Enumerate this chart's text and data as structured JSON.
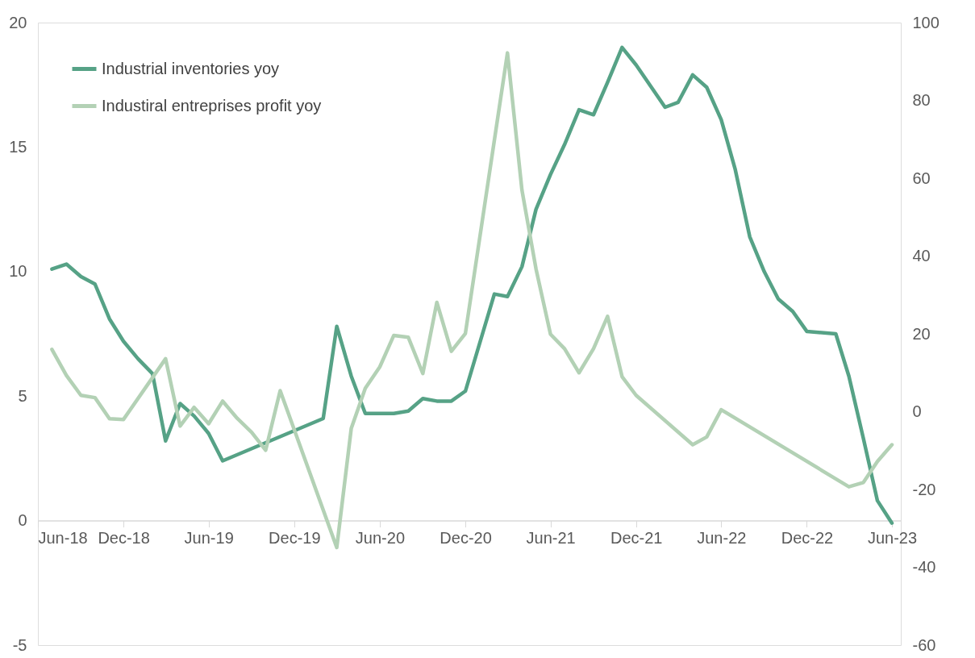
{
  "chart_data": {
    "type": "line",
    "xlim": [
      "2018-06",
      "2023-06-20"
    ],
    "xticks": [
      {
        "value": "2018-06",
        "label": "Jun-18"
      },
      {
        "value": "2018-12",
        "label": "Dec-18"
      },
      {
        "value": "2019-06",
        "label": "Jun-19"
      },
      {
        "value": "2019-12",
        "label": "Dec-19"
      },
      {
        "value": "2020-06",
        "label": "Jun-20"
      },
      {
        "value": "2020-12",
        "label": "Dec-20"
      },
      {
        "value": "2021-06",
        "label": "Jun-21"
      },
      {
        "value": "2021-12",
        "label": "Dec-21"
      },
      {
        "value": "2022-06",
        "label": "Jun-22"
      },
      {
        "value": "2022-12",
        "label": "Dec-22"
      },
      {
        "value": "2023-06",
        "label": "Jun-23"
      }
    ],
    "ylim": [
      -5,
      20
    ],
    "yticks": [
      -5,
      0,
      5,
      10,
      15,
      20
    ],
    "y2lim": [
      -60,
      100
    ],
    "y2ticks": [
      -60,
      -40,
      -20,
      0,
      20,
      40,
      60,
      80,
      100
    ],
    "grid": false,
    "legend": "top left",
    "series": [
      {
        "name": "Industrial inventories yoy",
        "color": "#56a286",
        "axis": "y",
        "x": [
          "2018-07",
          "2018-08",
          "2018-09",
          "2018-10",
          "2018-11",
          "2018-12",
          "2019-01",
          "2019-02",
          "2019-03",
          "2019-04",
          "2019-05",
          "2019-06",
          "2019-07",
          "2020-02",
          "2020-03",
          "2020-04",
          "2020-05",
          "2020-06",
          "2020-07",
          "2020-08",
          "2020-09",
          "2020-10",
          "2020-11",
          "2020-12",
          "2021-02",
          "2021-03",
          "2021-04",
          "2021-05",
          "2021-06",
          "2021-07",
          "2021-08",
          "2021-09",
          "2021-10",
          "2021-11",
          "2021-12",
          "2022-02",
          "2022-03",
          "2022-04",
          "2022-05",
          "2022-06",
          "2022-07",
          "2022-08",
          "2022-09",
          "2022-10",
          "2022-11",
          "2022-12",
          "2023-02",
          "2023-03",
          "2023-04",
          "2023-05",
          "2023-06"
        ],
        "values": [
          10.1,
          10.3,
          9.8,
          9.5,
          8.1,
          7.2,
          6.5,
          5.9,
          3.2,
          4.7,
          4.2,
          3.5,
          2.4,
          4.1,
          7.8,
          5.8,
          4.3,
          4.3,
          4.3,
          4.4,
          4.9,
          4.8,
          4.8,
          5.2,
          9.1,
          9.0,
          10.2,
          12.5,
          13.9,
          15.1,
          16.5,
          16.3,
          17.6,
          19.0,
          18.3,
          16.6,
          16.8,
          17.9,
          17.4,
          16.1,
          14.1,
          11.4,
          10.0,
          8.9,
          8.4,
          7.6,
          7.5,
          5.8,
          3.3,
          0.8,
          -0.1
        ]
      },
      {
        "name": "Industiral entreprises profit yoy",
        "color": "#b3d1b5",
        "axis": "y2",
        "x": [
          "2018-07",
          "2018-08",
          "2018-09",
          "2018-10",
          "2018-11",
          "2018-12",
          "2019-03",
          "2019-04",
          "2019-05",
          "2019-06",
          "2019-07",
          "2019-08",
          "2019-09",
          "2019-10",
          "2019-11",
          "2020-03",
          "2020-04",
          "2020-05",
          "2020-06",
          "2020-07",
          "2020-08",
          "2020-09",
          "2020-10",
          "2020-11",
          "2020-12",
          "2021-03",
          "2021-04",
          "2021-05",
          "2021-06",
          "2021-07",
          "2021-08",
          "2021-09",
          "2021-10",
          "2021-11",
          "2021-12",
          "2022-04",
          "2022-05",
          "2022-06",
          "2023-03",
          "2023-04",
          "2023-05",
          "2023-06"
        ],
        "values": [
          16.0,
          9.3,
          4.2,
          3.6,
          -1.8,
          -2.0,
          13.6,
          -3.7,
          1.1,
          -3.1,
          2.7,
          -1.7,
          -5.3,
          -9.9,
          5.4,
          -34.9,
          -4.3,
          6.0,
          11.5,
          19.6,
          19.1,
          9.8,
          28.1,
          15.5,
          20.1,
          92.2,
          56.9,
          36.7,
          19.9,
          16.2,
          10.0,
          16.2,
          24.5,
          9.0,
          4.2,
          -8.5,
          -6.5,
          0.5,
          -19.3,
          -18.2,
          -12.8,
          -8.5
        ]
      }
    ]
  }
}
